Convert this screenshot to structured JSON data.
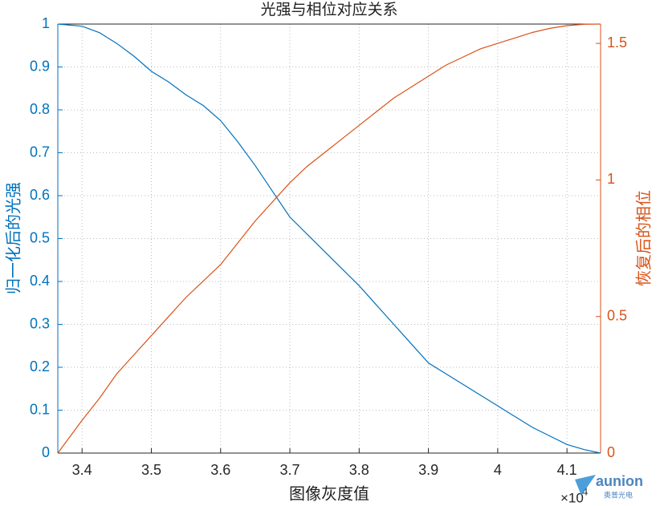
{
  "chart_data": {
    "type": "line",
    "title": "光强与相位对应关系",
    "x_label": "图像灰度值",
    "y_label": "归一化后的光强",
    "y2_label": "恢复后的相位",
    "x_exponent": {
      "base": "×10",
      "power": "4"
    },
    "watermark": {
      "logo": "aunion",
      "caption": "奥普光电"
    },
    "grid": true,
    "x": [
      33650,
      34000,
      34250,
      34500,
      34750,
      35000,
      35250,
      35500,
      35750,
      36000,
      36250,
      36500,
      36750,
      37000,
      37250,
      37500,
      37750,
      38000,
      38250,
      38500,
      38750,
      39000,
      39250,
      39500,
      39750,
      40000,
      40250,
      40500,
      40750,
      41000,
      41250,
      41485
    ],
    "series": [
      {
        "name": "归一化后的光强",
        "color": "#0072bd",
        "axis": "y",
        "values": [
          1.0,
          0.995,
          0.98,
          0.955,
          0.925,
          0.89,
          0.865,
          0.835,
          0.81,
          0.775,
          0.725,
          0.67,
          0.61,
          0.55,
          0.51,
          0.47,
          0.43,
          0.39,
          0.345,
          0.3,
          0.255,
          0.21,
          0.185,
          0.16,
          0.135,
          0.11,
          0.085,
          0.06,
          0.04,
          0.02,
          0.008,
          0.0
        ]
      },
      {
        "name": "恢复后的相位",
        "color": "#d95319",
        "axis": "y2",
        "values": [
          0,
          0.12,
          0.2,
          0.29,
          0.36,
          0.43,
          0.5,
          0.57,
          0.63,
          0.69,
          0.77,
          0.85,
          0.92,
          0.99,
          1.05,
          1.1,
          1.15,
          1.2,
          1.25,
          1.3,
          1.34,
          1.38,
          1.42,
          1.45,
          1.48,
          1.5,
          1.52,
          1.54,
          1.555,
          1.565,
          1.57,
          1.5708
        ]
      }
    ],
    "xlim": [
      33650,
      41485
    ],
    "xticks": [
      {
        "value": 34000,
        "label": "3.4"
      },
      {
        "value": 35000,
        "label": "3.5"
      },
      {
        "value": 36000,
        "label": "3.6"
      },
      {
        "value": 37000,
        "label": "3.7"
      },
      {
        "value": 38000,
        "label": "3.8"
      },
      {
        "value": 39000,
        "label": "3.9"
      },
      {
        "value": 40000,
        "label": "4"
      },
      {
        "value": 41000,
        "label": "4.1"
      }
    ],
    "ylim": [
      0,
      1
    ],
    "yticks": [
      0,
      0.1,
      0.2,
      0.3,
      0.4,
      0.5,
      0.6,
      0.7,
      0.8,
      0.9,
      1
    ],
    "y2lim": [
      0,
      1.5708
    ],
    "y2ticks": [
      0,
      0.5,
      1,
      1.5
    ]
  }
}
